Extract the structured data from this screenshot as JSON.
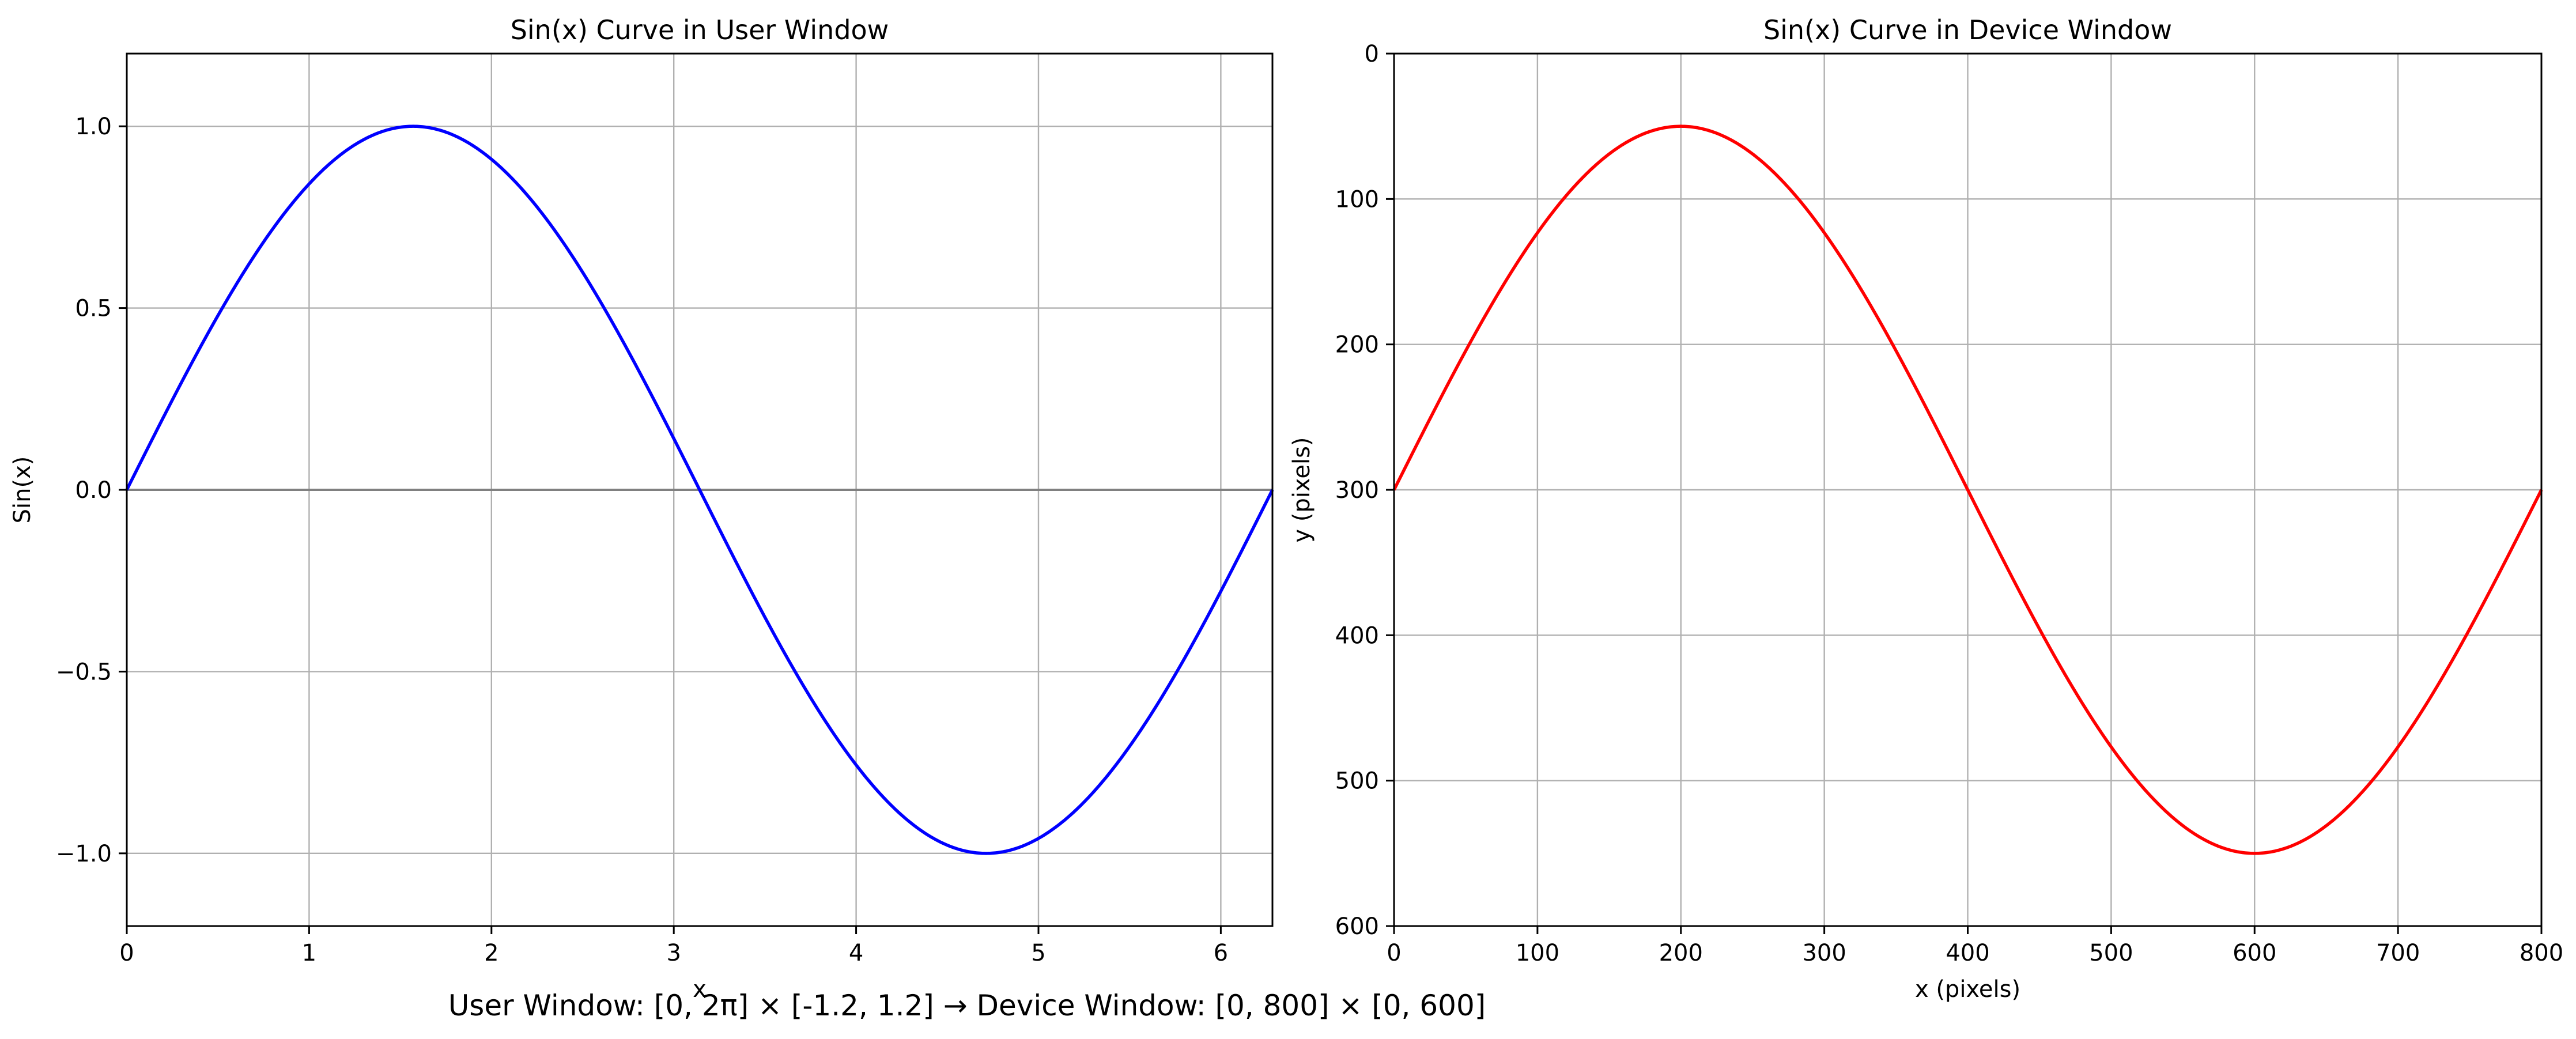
{
  "figure": {
    "caption": "User Window: [0, 2π] × [-1.2, 1.2] → Device Window: [0, 800] × [0, 600]"
  },
  "chart_data": [
    {
      "type": "line",
      "title": "Sin(x) Curve in User Window",
      "xlabel": "x",
      "ylabel": "Sin(x)",
      "xlim": [
        0,
        6.2832
      ],
      "ylim": [
        -1.2,
        1.2
      ],
      "xticks": [
        0,
        1,
        2,
        3,
        4,
        5,
        6
      ],
      "xtick_labels": [
        "0",
        "1",
        "2",
        "3",
        "4",
        "5",
        "6"
      ],
      "yticks": [
        -1.0,
        -0.5,
        0.0,
        0.5,
        1.0
      ],
      "ytick_labels": [
        "−1.0",
        "−0.5",
        "0.0",
        "0.5",
        "1.0"
      ],
      "grid": true,
      "reference_line": {
        "y": 0,
        "color": "#808080"
      },
      "series": [
        {
          "color": "#0000ff",
          "function": "sin(x)",
          "x_range": [
            0,
            6.2832
          ],
          "sample_points": {
            "x": [
              0,
              1.5708,
              3.1416,
              4.7124,
              6.2832
            ],
            "y": [
              0,
              1,
              0,
              -1,
              0
            ]
          }
        }
      ]
    },
    {
      "type": "line",
      "title": "Sin(x) Curve in Device Window",
      "xlabel": "x (pixels)",
      "ylabel": "y (pixels)",
      "xlim": [
        0,
        800
      ],
      "ylim": [
        600,
        0
      ],
      "y_inverted": true,
      "xticks": [
        0,
        100,
        200,
        300,
        400,
        500,
        600,
        700,
        800
      ],
      "xtick_labels": [
        "0",
        "100",
        "200",
        "300",
        "400",
        "500",
        "600",
        "700",
        "800"
      ],
      "yticks": [
        0,
        100,
        200,
        300,
        400,
        500,
        600
      ],
      "ytick_labels": [
        "0",
        "100",
        "200",
        "300",
        "400",
        "500",
        "600"
      ],
      "grid": true,
      "series": [
        {
          "color": "#ff0000",
          "function": "300 - 250 * sin(2π·x/800)",
          "x_range": [
            0,
            800
          ],
          "sample_points": {
            "x": [
              0,
              200,
              400,
              600,
              800
            ],
            "y": [
              300,
              50,
              300,
              550,
              300
            ]
          }
        }
      ]
    }
  ]
}
